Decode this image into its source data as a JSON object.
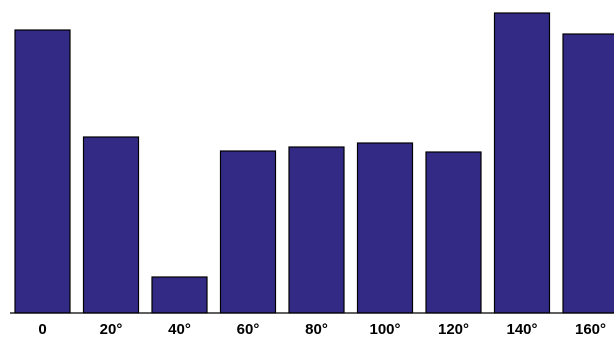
{
  "chart_data": {
    "type": "bar",
    "categories": [
      "0",
      "20°",
      "40°",
      "60°",
      "80°",
      "100°",
      "120°",
      "140°",
      "160°"
    ],
    "values": [
      283,
      176,
      36,
      162,
      166,
      170,
      161,
      300,
      279
    ],
    "ylim": [
      0,
      300
    ],
    "title": "",
    "xlabel": "",
    "ylabel": "",
    "grid": false,
    "legend": "none",
    "colors": {
      "bar_fill": "#332a85",
      "bar_stroke": "#000000",
      "axis": "#000000"
    }
  }
}
